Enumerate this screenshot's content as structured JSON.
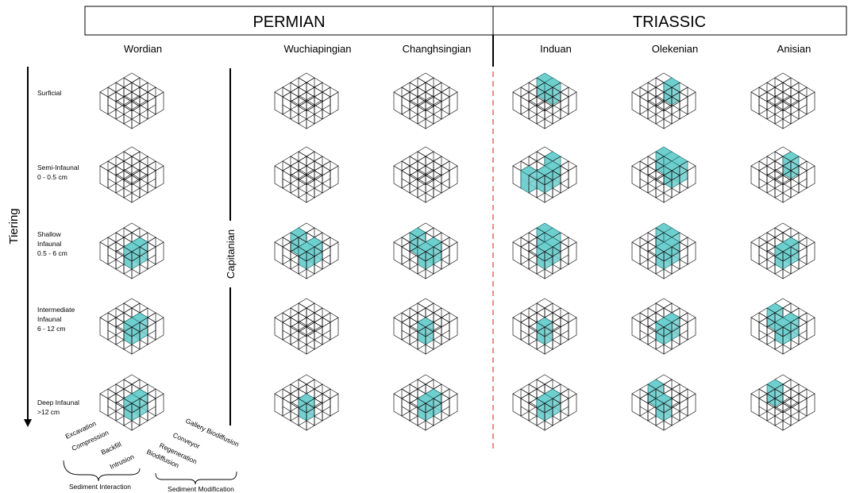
{
  "periods": [
    {
      "name": "PERMIAN"
    },
    {
      "name": "TRIASSIC"
    }
  ],
  "stages": [
    "Wordian",
    "Wuchiapingian",
    "Changhsingian",
    "Induan",
    "Olekenian",
    "Anisian"
  ],
  "capitanian_label": "Capitanian",
  "tiering_label": "Tiering",
  "tiers": [
    {
      "lines": [
        "Surficial"
      ]
    },
    {
      "lines": [
        "Semi-Infaunal",
        "0 - 0.5 cm"
      ]
    },
    {
      "lines": [
        "Shallow",
        "Infaunal",
        "0.5 - 6 cm"
      ]
    },
    {
      "lines": [
        "Intermediate",
        "Infaunal",
        "6 - 12 cm"
      ]
    },
    {
      "lines": [
        "Deep Infaunal",
        ">12 cm"
      ]
    }
  ],
  "interaction_modes": [
    "Excavation",
    "Compression",
    "Backfill",
    "Intrusion"
  ],
  "modification_modes": [
    "Gallery Biodiffusion",
    "Conveyor",
    "Regeneration",
    "Biodiffusion"
  ],
  "group_labels": {
    "interaction": "Sediment Interaction",
    "modification": "Sediment Modification"
  },
  "colors": {
    "occupied_fill": "#6ecfcf",
    "occupied_stroke": "#1f6f6f",
    "grid_line": "#1a1a1a",
    "boundary_dash": "#e05a5a"
  },
  "occupancy": [
    [
      [],
      [],
      [],
      [
        [
          0,
          0
        ],
        [
          1,
          0
        ]
      ],
      [
        [
          1,
          0
        ]
      ],
      []
    ],
    [
      [],
      [],
      [],
      [
        [
          1,
          0
        ],
        [
          2,
          1
        ],
        [
          2,
          2
        ],
        [
          1,
          3
        ]
      ],
      [
        [
          0,
          0
        ],
        [
          1,
          0
        ],
        [
          2,
          0
        ],
        [
          2,
          1
        ]
      ],
      [
        [
          1,
          0
        ]
      ]
    ],
    [
      [
        [
          2,
          1
        ],
        [
          2,
          2
        ]
      ],
      [
        [
          0,
          1
        ],
        [
          2,
          1
        ],
        [
          2,
          2
        ]
      ],
      [
        [
          0,
          1
        ],
        [
          2,
          1
        ],
        [
          2,
          2
        ]
      ],
      [
        [
          0,
          0
        ],
        [
          1,
          0
        ],
        [
          2,
          1
        ],
        [
          2,
          2
        ]
      ],
      [
        [
          0,
          0
        ],
        [
          1,
          0
        ],
        [
          2,
          1
        ],
        [
          2,
          2
        ]
      ],
      [
        [
          2,
          1
        ],
        [
          2,
          2
        ]
      ]
    ],
    [
      [
        [
          2,
          1
        ],
        [
          2,
          2
        ]
      ],
      [],
      [
        [
          2,
          2
        ]
      ],
      [
        [
          2,
          2
        ]
      ],
      [
        [
          2,
          1
        ],
        [
          2,
          2
        ]
      ],
      [
        [
          0,
          1
        ],
        [
          2,
          1
        ],
        [
          2,
          2
        ]
      ]
    ],
    [
      [
        [
          2,
          1
        ],
        [
          2,
          2
        ]
      ],
      [
        [
          2,
          2
        ]
      ],
      [
        [
          2,
          1
        ],
        [
          2,
          2
        ]
      ],
      [
        [
          2,
          1
        ],
        [
          2,
          2
        ]
      ],
      [
        [
          0,
          1
        ],
        [
          2,
          2
        ]
      ],
      [
        [
          0,
          1
        ]
      ]
    ]
  ]
}
